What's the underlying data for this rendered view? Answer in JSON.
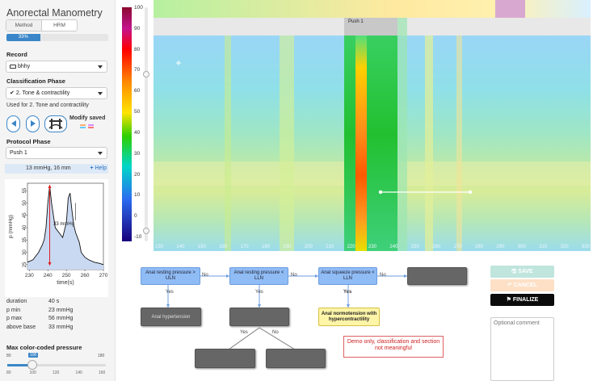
{
  "sidebar": {
    "title": "Anorectal Manometry",
    "tabs": [
      "Method",
      "HRM"
    ],
    "progress_label": "33%",
    "progress_value": 0.33,
    "record_label": "Record",
    "record_value": "bhhy",
    "classification_label": "Classification Phase",
    "classification_value": "2. Tone & contractility",
    "used_for": "Used for 2. Tone and contractility",
    "modify_saved": "Modify saved",
    "protocol_label": "Protocol Phase",
    "protocol_value": "Push 1",
    "info": "13 mmHg, 16 mm",
    "help": "Help",
    "plot": {
      "x_ticks": [
        "230",
        "240",
        "250",
        "260",
        "270"
      ],
      "y_ticks": [
        "25",
        "30",
        "35",
        "40",
        "45",
        "50",
        "55"
      ],
      "xlabel": "time(s)",
      "ylabel": "p (mmHg)",
      "annotation": "33 mmHg"
    },
    "stats": [
      {
        "label": "duration",
        "value": "40 s"
      },
      {
        "label": "p min",
        "value": "23 mmHg"
      },
      {
        "label": "p max",
        "value": "56 mmHg"
      },
      {
        "label": "above base",
        "value": "33 mmHg"
      }
    ],
    "max_pressure_label": "Max color-coded pressure",
    "slider": {
      "min": "80",
      "value": "100",
      "max": "180",
      "ticks": [
        "80",
        "100",
        "120",
        "140",
        "160"
      ]
    }
  },
  "heatmap": {
    "colorbar_ticks": [
      "100",
      "90",
      "80",
      "70",
      "60",
      "50",
      "40",
      "30",
      "20",
      "10",
      "0",
      "-10"
    ],
    "push_label": "Push 1",
    "x_ticks": [
      "130",
      "140",
      "150",
      "160",
      "170",
      "180",
      "190",
      "200",
      "210",
      "220",
      "230",
      "240",
      "250",
      "260",
      "270",
      "280",
      "290",
      "300",
      "310",
      "320",
      "330"
    ]
  },
  "flow": {
    "n1": "Anal resting pressure > ULN",
    "n2": "Anal resting pressure < LLN",
    "n3": "Anal squeeze pressure < LLN",
    "n4": "",
    "hypertension": "Anal hypertension",
    "normotension": "Anal normotension with hypercontractility",
    "no": "No",
    "yes": "Yes",
    "demo_note": "Demo only, classification and section not meaningful"
  },
  "actions": {
    "save": "SAVE",
    "cancel": "CANCEL",
    "finalize": "FINALIZE",
    "comment_placeholder": "Optional comment"
  },
  "chart_data": {
    "type": "line",
    "x": [
      229,
      232,
      235,
      237,
      238,
      239,
      240,
      241,
      242,
      243,
      244,
      246,
      248,
      250,
      251,
      252,
      253,
      254,
      255,
      256,
      257,
      258,
      260,
      262,
      265,
      268,
      270
    ],
    "y": [
      26,
      27,
      30,
      33,
      35,
      40,
      50,
      57,
      50,
      45,
      40,
      38,
      36,
      42,
      52,
      54,
      47,
      41,
      38,
      36,
      34,
      30,
      28,
      27,
      26,
      25.5,
      25
    ],
    "xlabel": "time(s)",
    "ylabel": "p (mmHg)",
    "xlim": [
      229,
      270
    ],
    "ylim": [
      23,
      58
    ]
  }
}
